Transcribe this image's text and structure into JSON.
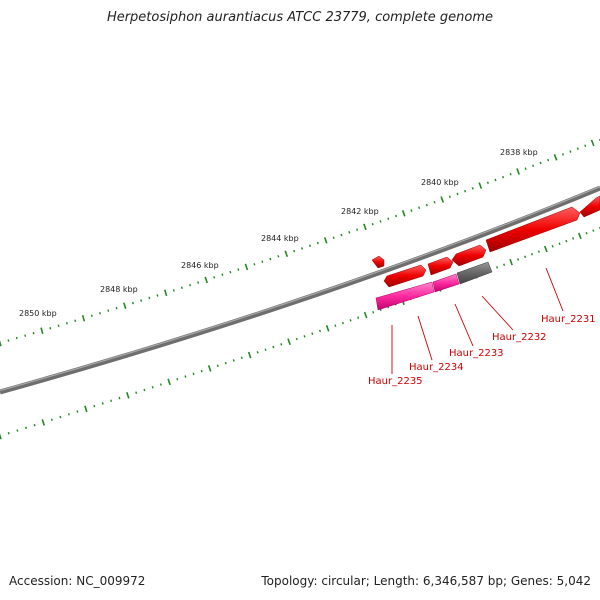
{
  "title": "Herpetosiphon aurantiacus ATCC 23779, complete genome",
  "accession": "Accession: NC_009972",
  "summary": "Topology: circular; Length: 6,346,587 bp; Genes: 5,042",
  "scale_labels": [
    "2838 kbp",
    "2840 kbp",
    "2842 kbp",
    "2844 kbp",
    "2846 kbp",
    "2848 kbp",
    "2850 kbp"
  ],
  "gene_labels": [
    "Haur_2231",
    "Haur_2232",
    "Haur_2233",
    "Haur_2234",
    "Haur_2235"
  ],
  "colors": {
    "backbone": "#777777",
    "forward_gene": "#ee0000",
    "reverse_gene": "#ff2aa0",
    "other_feature": "#666666",
    "tick": "#228822",
    "label": "#cc0000"
  }
}
